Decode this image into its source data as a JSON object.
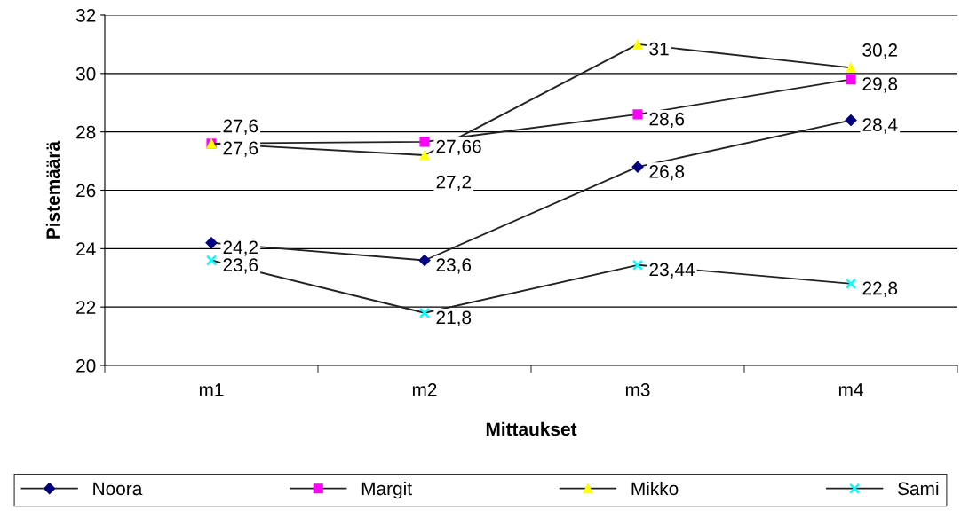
{
  "chart_data": {
    "type": "line",
    "xlabel": "Mittaukset",
    "ylabel": "Pistemäärä",
    "categories": [
      "m1",
      "m2",
      "m3",
      "m4"
    ],
    "series": [
      {
        "name": "Noora",
        "color": "#000080",
        "marker": "diamond",
        "values": [
          24.2,
          23.6,
          26.8,
          28.4
        ],
        "value_labels": [
          "24,2",
          "23,6",
          "26,8",
          "28,4"
        ]
      },
      {
        "name": "Margit",
        "color": "#ff00ff",
        "marker": "square",
        "values": [
          27.6,
          27.66,
          28.6,
          29.8
        ],
        "value_labels": [
          "27,6",
          "27,66",
          "28,6",
          "29,8"
        ]
      },
      {
        "name": "Mikko",
        "color": "#ffff00",
        "marker": "triangle",
        "values": [
          27.6,
          27.2,
          31,
          30.2
        ],
        "value_labels": [
          "27,6",
          "27,2",
          "31",
          "30,2"
        ]
      },
      {
        "name": "Sami",
        "color": "#00ffff",
        "marker": "cross",
        "values": [
          23.6,
          21.8,
          23.44,
          22.8
        ],
        "value_labels": [
          "23,6",
          "21,8",
          "23,44",
          "22,8"
        ]
      }
    ],
    "ylim": [
      20,
      32
    ],
    "yticks": [
      20,
      22,
      24,
      26,
      28,
      30,
      32
    ],
    "grid": "y",
    "legend": "bottom"
  }
}
